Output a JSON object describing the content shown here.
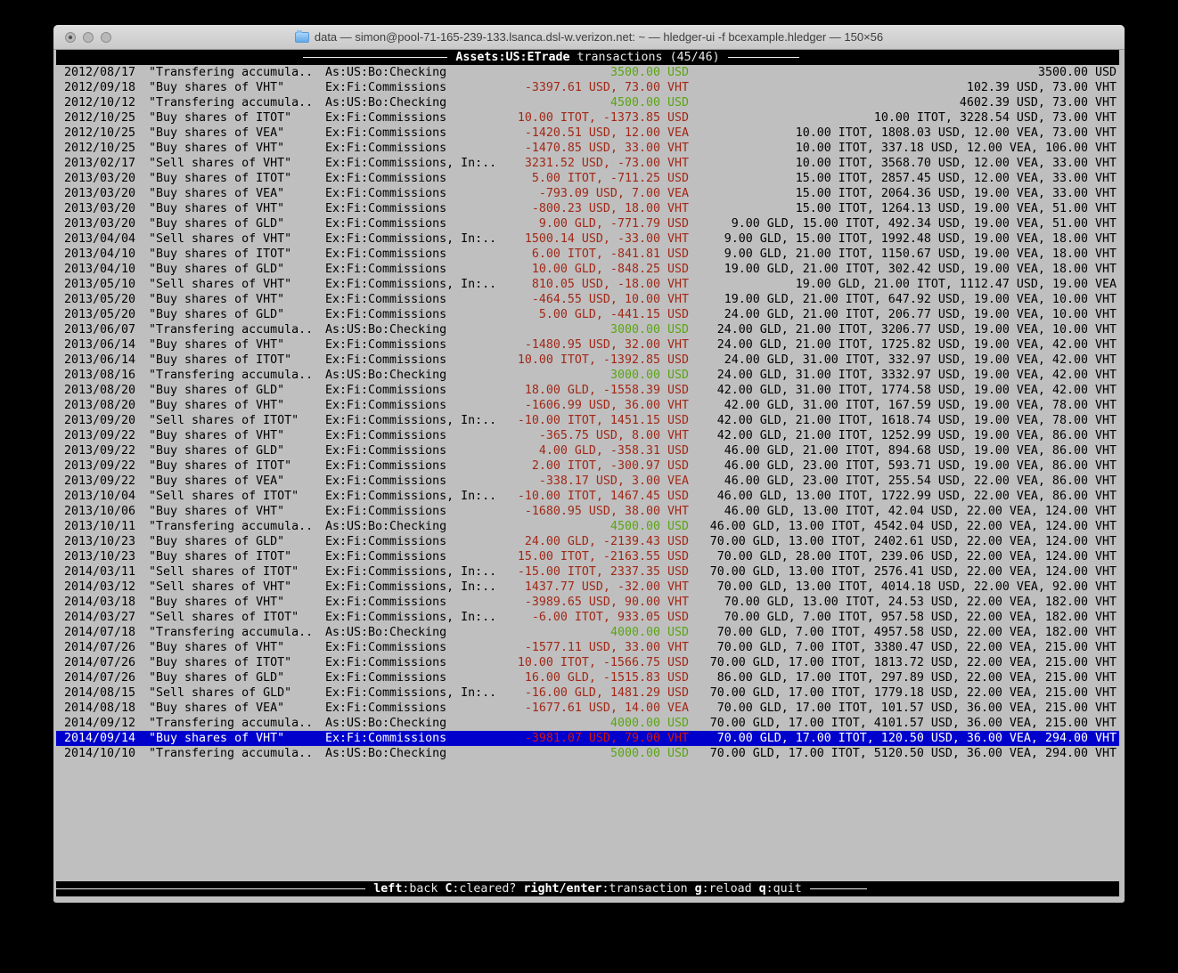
{
  "window": {
    "title": "data — simon@pool-71-165-239-133.lsanca.dsl-w.verizon.net: ~ — hledger-ui -f bcexample.hledger — 150×56"
  },
  "header": {
    "account": "Assets:US:ETrade",
    "label": "transactions (45/46)"
  },
  "colors": {
    "positive_amount": "#5aa513",
    "negative_amount": "#a12817",
    "selection_background": "#0000cd",
    "selected_negative_amount": "#d41408",
    "terminal_background": "#bfbfbf"
  },
  "table": {
    "selected_index": 44,
    "rows": [
      {
        "date": "2012/08/17",
        "description": "\"Transfering accumula..",
        "account": "As:US:Bo:Checking",
        "change": "3500.00 USD",
        "positive": true,
        "balance": "3500.00 USD"
      },
      {
        "date": "2012/09/18",
        "description": "\"Buy shares of VHT\"",
        "account": "Ex:Fi:Commissions",
        "change": "-3397.61 USD, 73.00 VHT",
        "positive": false,
        "balance": "102.39 USD, 73.00 VHT"
      },
      {
        "date": "2012/10/12",
        "description": "\"Transfering accumula..",
        "account": "As:US:Bo:Checking",
        "change": "4500.00 USD",
        "positive": true,
        "balance": "4602.39 USD, 73.00 VHT"
      },
      {
        "date": "2012/10/25",
        "description": "\"Buy shares of ITOT\"",
        "account": "Ex:Fi:Commissions",
        "change": "10.00 ITOT, -1373.85 USD",
        "positive": false,
        "balance": "10.00 ITOT, 3228.54 USD, 73.00 VHT"
      },
      {
        "date": "2012/10/25",
        "description": "\"Buy shares of VEA\"",
        "account": "Ex:Fi:Commissions",
        "change": "-1420.51 USD, 12.00 VEA",
        "positive": false,
        "balance": "10.00 ITOT, 1808.03 USD, 12.00 VEA, 73.00 VHT"
      },
      {
        "date": "2012/10/25",
        "description": "\"Buy shares of VHT\"",
        "account": "Ex:Fi:Commissions",
        "change": "-1470.85 USD, 33.00 VHT",
        "positive": false,
        "balance": "10.00 ITOT, 337.18 USD, 12.00 VEA, 106.00 VHT"
      },
      {
        "date": "2013/02/17",
        "description": "\"Sell shares of VHT\"",
        "account": "Ex:Fi:Commissions, In:..",
        "change": "3231.52 USD, -73.00 VHT",
        "positive": false,
        "balance": "10.00 ITOT, 3568.70 USD, 12.00 VEA, 33.00 VHT"
      },
      {
        "date": "2013/03/20",
        "description": "\"Buy shares of ITOT\"",
        "account": "Ex:Fi:Commissions",
        "change": "5.00 ITOT, -711.25 USD",
        "positive": false,
        "balance": "15.00 ITOT, 2857.45 USD, 12.00 VEA, 33.00 VHT"
      },
      {
        "date": "2013/03/20",
        "description": "\"Buy shares of VEA\"",
        "account": "Ex:Fi:Commissions",
        "change": "-793.09 USD, 7.00 VEA",
        "positive": false,
        "balance": "15.00 ITOT, 2064.36 USD, 19.00 VEA, 33.00 VHT"
      },
      {
        "date": "2013/03/20",
        "description": "\"Buy shares of VHT\"",
        "account": "Ex:Fi:Commissions",
        "change": "-800.23 USD, 18.00 VHT",
        "positive": false,
        "balance": "15.00 ITOT, 1264.13 USD, 19.00 VEA, 51.00 VHT"
      },
      {
        "date": "2013/03/20",
        "description": "\"Buy shares of GLD\"",
        "account": "Ex:Fi:Commissions",
        "change": "9.00 GLD, -771.79 USD",
        "positive": false,
        "balance": "9.00 GLD, 15.00 ITOT, 492.34 USD, 19.00 VEA, 51.00 VHT"
      },
      {
        "date": "2013/04/04",
        "description": "\"Sell shares of VHT\"",
        "account": "Ex:Fi:Commissions, In:..",
        "change": "1500.14 USD, -33.00 VHT",
        "positive": false,
        "balance": "9.00 GLD, 15.00 ITOT, 1992.48 USD, 19.00 VEA, 18.00 VHT"
      },
      {
        "date": "2013/04/10",
        "description": "\"Buy shares of ITOT\"",
        "account": "Ex:Fi:Commissions",
        "change": "6.00 ITOT, -841.81 USD",
        "positive": false,
        "balance": "9.00 GLD, 21.00 ITOT, 1150.67 USD, 19.00 VEA, 18.00 VHT"
      },
      {
        "date": "2013/04/10",
        "description": "\"Buy shares of GLD\"",
        "account": "Ex:Fi:Commissions",
        "change": "10.00 GLD, -848.25 USD",
        "positive": false,
        "balance": "19.00 GLD, 21.00 ITOT, 302.42 USD, 19.00 VEA, 18.00 VHT"
      },
      {
        "date": "2013/05/10",
        "description": "\"Sell shares of VHT\"",
        "account": "Ex:Fi:Commissions, In:..",
        "change": "810.05 USD, -18.00 VHT",
        "positive": false,
        "balance": "19.00 GLD, 21.00 ITOT, 1112.47 USD, 19.00 VEA"
      },
      {
        "date": "2013/05/20",
        "description": "\"Buy shares of VHT\"",
        "account": "Ex:Fi:Commissions",
        "change": "-464.55 USD, 10.00 VHT",
        "positive": false,
        "balance": "19.00 GLD, 21.00 ITOT, 647.92 USD, 19.00 VEA, 10.00 VHT"
      },
      {
        "date": "2013/05/20",
        "description": "\"Buy shares of GLD\"",
        "account": "Ex:Fi:Commissions",
        "change": "5.00 GLD, -441.15 USD",
        "positive": false,
        "balance": "24.00 GLD, 21.00 ITOT, 206.77 USD, 19.00 VEA, 10.00 VHT"
      },
      {
        "date": "2013/06/07",
        "description": "\"Transfering accumula..",
        "account": "As:US:Bo:Checking",
        "change": "3000.00 USD",
        "positive": true,
        "balance": "24.00 GLD, 21.00 ITOT, 3206.77 USD, 19.00 VEA, 10.00 VHT"
      },
      {
        "date": "2013/06/14",
        "description": "\"Buy shares of VHT\"",
        "account": "Ex:Fi:Commissions",
        "change": "-1480.95 USD, 32.00 VHT",
        "positive": false,
        "balance": "24.00 GLD, 21.00 ITOT, 1725.82 USD, 19.00 VEA, 42.00 VHT"
      },
      {
        "date": "2013/06/14",
        "description": "\"Buy shares of ITOT\"",
        "account": "Ex:Fi:Commissions",
        "change": "10.00 ITOT, -1392.85 USD",
        "positive": false,
        "balance": "24.00 GLD, 31.00 ITOT, 332.97 USD, 19.00 VEA, 42.00 VHT"
      },
      {
        "date": "2013/08/16",
        "description": "\"Transfering accumula..",
        "account": "As:US:Bo:Checking",
        "change": "3000.00 USD",
        "positive": true,
        "balance": "24.00 GLD, 31.00 ITOT, 3332.97 USD, 19.00 VEA, 42.00 VHT"
      },
      {
        "date": "2013/08/20",
        "description": "\"Buy shares of GLD\"",
        "account": "Ex:Fi:Commissions",
        "change": "18.00 GLD, -1558.39 USD",
        "positive": false,
        "balance": "42.00 GLD, 31.00 ITOT, 1774.58 USD, 19.00 VEA, 42.00 VHT"
      },
      {
        "date": "2013/08/20",
        "description": "\"Buy shares of VHT\"",
        "account": "Ex:Fi:Commissions",
        "change": "-1606.99 USD, 36.00 VHT",
        "positive": false,
        "balance": "42.00 GLD, 31.00 ITOT, 167.59 USD, 19.00 VEA, 78.00 VHT"
      },
      {
        "date": "2013/09/20",
        "description": "\"Sell shares of ITOT\"",
        "account": "Ex:Fi:Commissions, In:..",
        "change": "-10.00 ITOT, 1451.15 USD",
        "positive": false,
        "balance": "42.00 GLD, 21.00 ITOT, 1618.74 USD, 19.00 VEA, 78.00 VHT"
      },
      {
        "date": "2013/09/22",
        "description": "\"Buy shares of VHT\"",
        "account": "Ex:Fi:Commissions",
        "change": "-365.75 USD, 8.00 VHT",
        "positive": false,
        "balance": "42.00 GLD, 21.00 ITOT, 1252.99 USD, 19.00 VEA, 86.00 VHT"
      },
      {
        "date": "2013/09/22",
        "description": "\"Buy shares of GLD\"",
        "account": "Ex:Fi:Commissions",
        "change": "4.00 GLD, -358.31 USD",
        "positive": false,
        "balance": "46.00 GLD, 21.00 ITOT, 894.68 USD, 19.00 VEA, 86.00 VHT"
      },
      {
        "date": "2013/09/22",
        "description": "\"Buy shares of ITOT\"",
        "account": "Ex:Fi:Commissions",
        "change": "2.00 ITOT, -300.97 USD",
        "positive": false,
        "balance": "46.00 GLD, 23.00 ITOT, 593.71 USD, 19.00 VEA, 86.00 VHT"
      },
      {
        "date": "2013/09/22",
        "description": "\"Buy shares of VEA\"",
        "account": "Ex:Fi:Commissions",
        "change": "-338.17 USD, 3.00 VEA",
        "positive": false,
        "balance": "46.00 GLD, 23.00 ITOT, 255.54 USD, 22.00 VEA, 86.00 VHT"
      },
      {
        "date": "2013/10/04",
        "description": "\"Sell shares of ITOT\"",
        "account": "Ex:Fi:Commissions, In:..",
        "change": "-10.00 ITOT, 1467.45 USD",
        "positive": false,
        "balance": "46.00 GLD, 13.00 ITOT, 1722.99 USD, 22.00 VEA, 86.00 VHT"
      },
      {
        "date": "2013/10/06",
        "description": "\"Buy shares of VHT\"",
        "account": "Ex:Fi:Commissions",
        "change": "-1680.95 USD, 38.00 VHT",
        "positive": false,
        "balance": "46.00 GLD, 13.00 ITOT, 42.04 USD, 22.00 VEA, 124.00 VHT"
      },
      {
        "date": "2013/10/11",
        "description": "\"Transfering accumula..",
        "account": "As:US:Bo:Checking",
        "change": "4500.00 USD",
        "positive": true,
        "balance": "46.00 GLD, 13.00 ITOT, 4542.04 USD, 22.00 VEA, 124.00 VHT"
      },
      {
        "date": "2013/10/23",
        "description": "\"Buy shares of GLD\"",
        "account": "Ex:Fi:Commissions",
        "change": "24.00 GLD, -2139.43 USD",
        "positive": false,
        "balance": "70.00 GLD, 13.00 ITOT, 2402.61 USD, 22.00 VEA, 124.00 VHT"
      },
      {
        "date": "2013/10/23",
        "description": "\"Buy shares of ITOT\"",
        "account": "Ex:Fi:Commissions",
        "change": "15.00 ITOT, -2163.55 USD",
        "positive": false,
        "balance": "70.00 GLD, 28.00 ITOT, 239.06 USD, 22.00 VEA, 124.00 VHT"
      },
      {
        "date": "2014/03/11",
        "description": "\"Sell shares of ITOT\"",
        "account": "Ex:Fi:Commissions, In:..",
        "change": "-15.00 ITOT, 2337.35 USD",
        "positive": false,
        "balance": "70.00 GLD, 13.00 ITOT, 2576.41 USD, 22.00 VEA, 124.00 VHT"
      },
      {
        "date": "2014/03/12",
        "description": "\"Sell shares of VHT\"",
        "account": "Ex:Fi:Commissions, In:..",
        "change": "1437.77 USD, -32.00 VHT",
        "positive": false,
        "balance": "70.00 GLD, 13.00 ITOT, 4014.18 USD, 22.00 VEA, 92.00 VHT"
      },
      {
        "date": "2014/03/18",
        "description": "\"Buy shares of VHT\"",
        "account": "Ex:Fi:Commissions",
        "change": "-3989.65 USD, 90.00 VHT",
        "positive": false,
        "balance": "70.00 GLD, 13.00 ITOT, 24.53 USD, 22.00 VEA, 182.00 VHT"
      },
      {
        "date": "2014/03/27",
        "description": "\"Sell shares of ITOT\"",
        "account": "Ex:Fi:Commissions, In:..",
        "change": "-6.00 ITOT, 933.05 USD",
        "positive": false,
        "balance": "70.00 GLD, 7.00 ITOT, 957.58 USD, 22.00 VEA, 182.00 VHT"
      },
      {
        "date": "2014/07/18",
        "description": "\"Transfering accumula..",
        "account": "As:US:Bo:Checking",
        "change": "4000.00 USD",
        "positive": true,
        "balance": "70.00 GLD, 7.00 ITOT, 4957.58 USD, 22.00 VEA, 182.00 VHT"
      },
      {
        "date": "2014/07/26",
        "description": "\"Buy shares of VHT\"",
        "account": "Ex:Fi:Commissions",
        "change": "-1577.11 USD, 33.00 VHT",
        "positive": false,
        "balance": "70.00 GLD, 7.00 ITOT, 3380.47 USD, 22.00 VEA, 215.00 VHT"
      },
      {
        "date": "2014/07/26",
        "description": "\"Buy shares of ITOT\"",
        "account": "Ex:Fi:Commissions",
        "change": "10.00 ITOT, -1566.75 USD",
        "positive": false,
        "balance": "70.00 GLD, 17.00 ITOT, 1813.72 USD, 22.00 VEA, 215.00 VHT"
      },
      {
        "date": "2014/07/26",
        "description": "\"Buy shares of GLD\"",
        "account": "Ex:Fi:Commissions",
        "change": "16.00 GLD, -1515.83 USD",
        "positive": false,
        "balance": "86.00 GLD, 17.00 ITOT, 297.89 USD, 22.00 VEA, 215.00 VHT"
      },
      {
        "date": "2014/08/15",
        "description": "\"Sell shares of GLD\"",
        "account": "Ex:Fi:Commissions, In:..",
        "change": "-16.00 GLD, 1481.29 USD",
        "positive": false,
        "balance": "70.00 GLD, 17.00 ITOT, 1779.18 USD, 22.00 VEA, 215.00 VHT"
      },
      {
        "date": "2014/08/18",
        "description": "\"Buy shares of VEA\"",
        "account": "Ex:Fi:Commissions",
        "change": "-1677.61 USD, 14.00 VEA",
        "positive": false,
        "balance": "70.00 GLD, 17.00 ITOT, 101.57 USD, 36.00 VEA, 215.00 VHT"
      },
      {
        "date": "2014/09/12",
        "description": "\"Transfering accumula..",
        "account": "As:US:Bo:Checking",
        "change": "4000.00 USD",
        "positive": true,
        "balance": "70.00 GLD, 17.00 ITOT, 4101.57 USD, 36.00 VEA, 215.00 VHT"
      },
      {
        "date": "2014/09/14",
        "description": "\"Buy shares of VHT\"",
        "account": "Ex:Fi:Commissions",
        "change": "-3981.07 USD, 79.00 VHT",
        "positive": false,
        "balance": "70.00 GLD, 17.00 ITOT, 120.50 USD, 36.00 VEA, 294.00 VHT"
      },
      {
        "date": "2014/10/10",
        "description": "\"Transfering accumula..",
        "account": "As:US:Bo:Checking",
        "change": "5000.00 USD",
        "positive": true,
        "balance": "70.00 GLD, 17.00 ITOT, 5120.50 USD, 36.00 VEA, 294.00 VHT"
      }
    ]
  },
  "footer": {
    "keys": [
      {
        "key": "left",
        "desc": "back"
      },
      {
        "key": "C",
        "desc": "cleared?"
      },
      {
        "key": "right/enter",
        "desc": "transaction"
      },
      {
        "key": "g",
        "desc": "reload"
      },
      {
        "key": "q",
        "desc": "quit"
      }
    ]
  }
}
